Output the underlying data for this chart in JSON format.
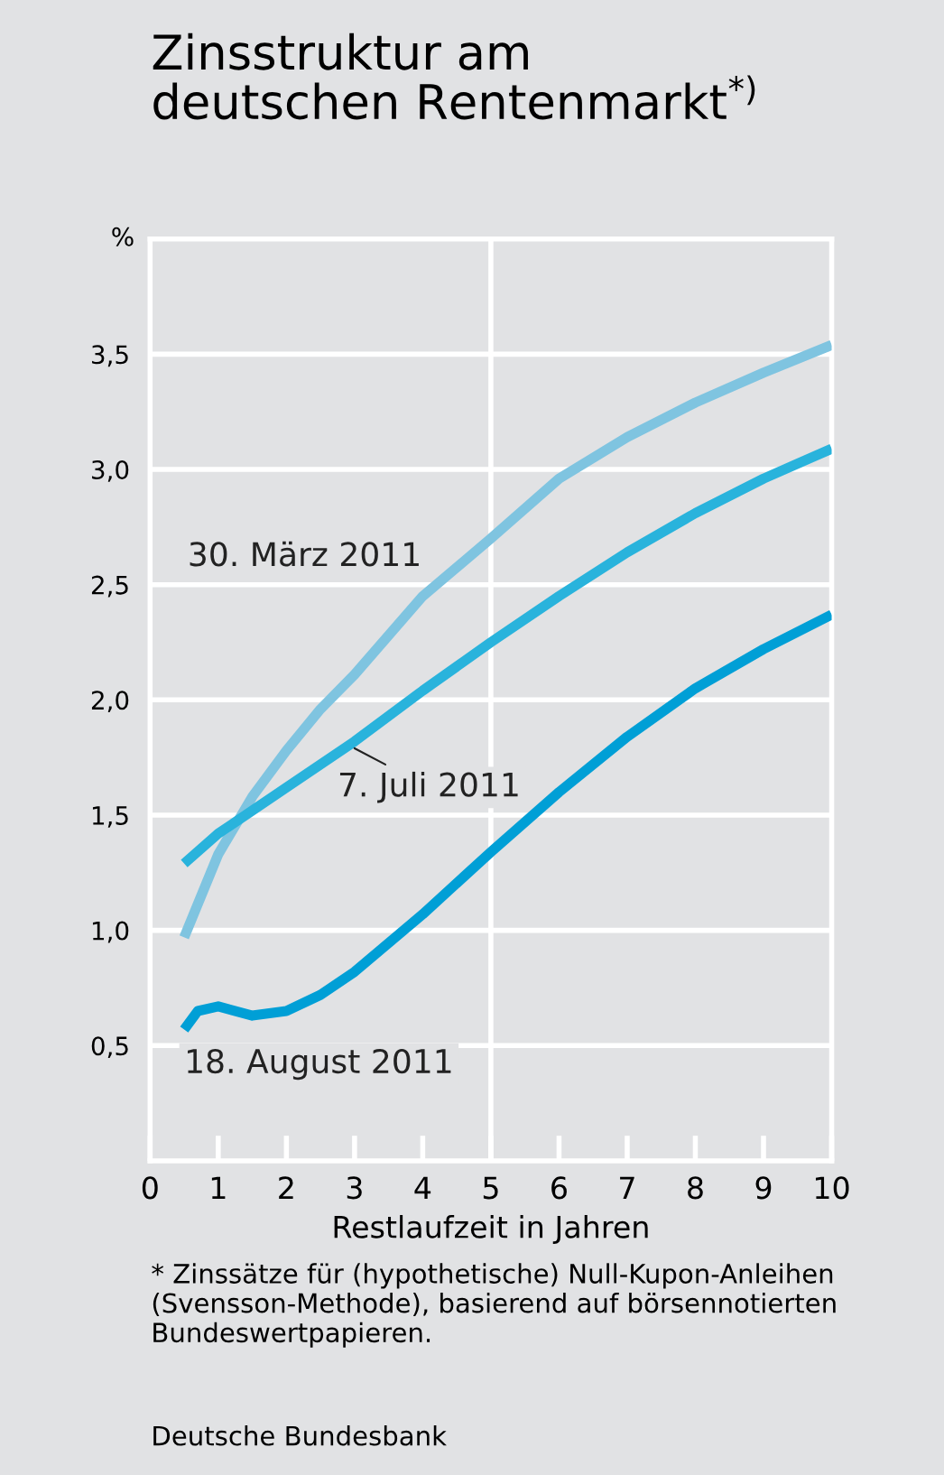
{
  "chart_data": {
    "type": "line",
    "title": "Zinsstruktur am\ndeutschen Rentenmarkt$^{*)}$",
    "xlabel": "Restlaufzeit in Jahren",
    "ylabel": "%",
    "xlim": [
      0,
      10
    ],
    "xticks": [
      0,
      1,
      2,
      3,
      4,
      5,
      6,
      7,
      8,
      9,
      10
    ],
    "ylim": [
      0,
      4
    ],
    "yticks": [
      {
        "value": 0.5,
        "label": "0,5"
      },
      {
        "value": 1.0,
        "label": "1,0"
      },
      {
        "value": 1.5,
        "label": "1,5"
      },
      {
        "value": 2.0,
        "label": "2,0"
      },
      {
        "value": 2.5,
        "label": "2,5"
      },
      {
        "value": 3.0,
        "label": "3,0"
      },
      {
        "value": 3.5,
        "label": "3,5"
      }
    ],
    "grid": "y",
    "legend": false,
    "marker": "none",
    "line_style": "solid",
    "ref_lines": [
      {
        "axis": "x",
        "value": 5,
        "color": "#ffffff"
      }
    ],
    "series": [
      {
        "name": "30. März 2011",
        "color": "#7fc4e0",
        "x": [
          0.5,
          1,
          1.5,
          2,
          2.5,
          3,
          4,
          5,
          6,
          7,
          8,
          9,
          10
        ],
        "values": [
          0.97,
          1.33,
          1.58,
          1.78,
          1.96,
          2.11,
          2.45,
          2.7,
          2.96,
          3.14,
          3.29,
          3.42,
          3.54
        ]
      },
      {
        "name": "7. Juli 2011",
        "color": "#29b3dc",
        "x": [
          0.5,
          1,
          2,
          3,
          4,
          5,
          6,
          7,
          8,
          9,
          10
        ],
        "values": [
          1.29,
          1.42,
          1.62,
          1.82,
          2.04,
          2.25,
          2.45,
          2.64,
          2.81,
          2.96,
          3.09
        ]
      },
      {
        "name": "18. August 2011",
        "color": "#009fd6",
        "x": [
          0.5,
          0.7,
          1,
          1.5,
          2,
          2.5,
          3,
          4,
          5,
          6,
          7,
          8,
          9,
          10
        ],
        "values": [
          0.57,
          0.65,
          0.67,
          0.63,
          0.65,
          0.72,
          0.82,
          1.07,
          1.34,
          1.6,
          1.84,
          2.05,
          2.22,
          2.37
        ]
      }
    ],
    "annotations": [
      "* Zinssätze für (hypothetische) Null-Kupon-Anleihen (Svensson-Methode), basierend auf börsennotierten Bundeswertpapieren.",
      "Deutsche Bundesbank"
    ]
  }
}
